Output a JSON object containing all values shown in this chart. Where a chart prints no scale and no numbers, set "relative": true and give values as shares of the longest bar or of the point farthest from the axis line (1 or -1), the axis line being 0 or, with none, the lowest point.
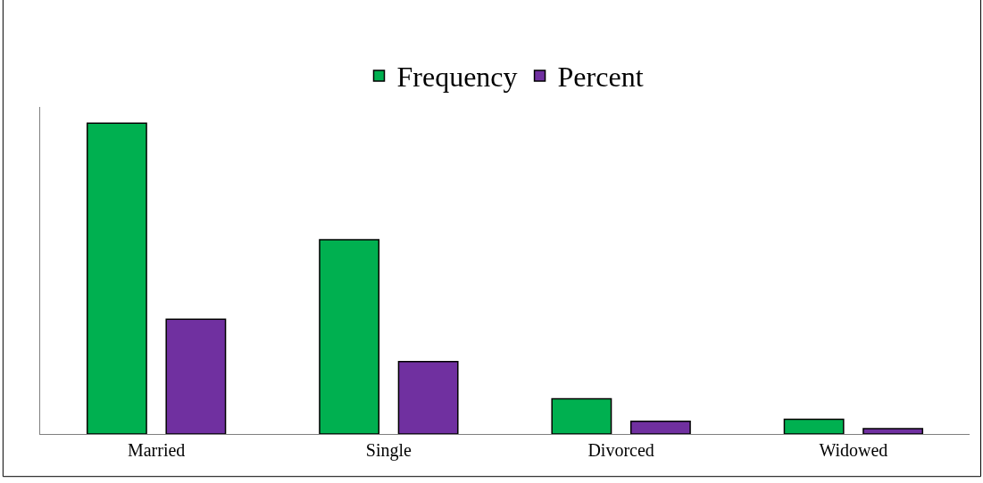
{
  "chart_data": {
    "type": "bar",
    "relative": true,
    "categories": [
      "Married",
      "Single",
      "Divorced",
      "Widowed"
    ],
    "series": [
      {
        "name": "Frequency",
        "color": "#00b050",
        "values": [
          1.0,
          0.625,
          0.113,
          0.047
        ]
      },
      {
        "name": "Percent",
        "color": "#7030a0",
        "values": [
          0.369,
          0.233,
          0.041,
          0.017
        ]
      }
    ],
    "legend": "top"
  }
}
